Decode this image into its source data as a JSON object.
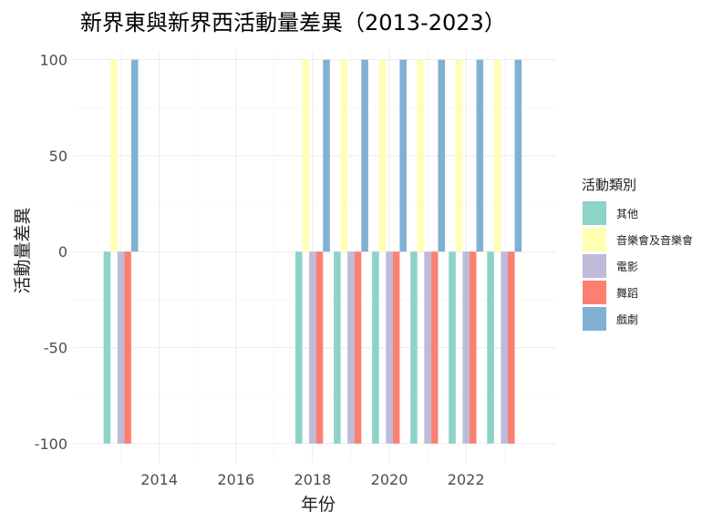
{
  "chart_data": {
    "type": "bar",
    "title": "新界東與新界西活動量差異（2013-2023）",
    "xlabel": "年份",
    "ylabel": "活動量差異",
    "x": [
      2013,
      2018,
      2019,
      2020,
      2021,
      2022,
      2023
    ],
    "xlim": [
      2011.75,
      2024.35
    ],
    "ylim": [
      -110,
      105
    ],
    "x_ticks": [
      2014,
      2016,
      2018,
      2020,
      2022
    ],
    "y_ticks": [
      100,
      50,
      0,
      -50,
      -100
    ],
    "grid": true,
    "legend": {
      "title": "活動類別",
      "position": "right"
    },
    "series": [
      {
        "name": "其他",
        "color": "#8DD3C7",
        "values": [
          -100,
          -100,
          -100,
          -100,
          -100,
          -100,
          -100
        ]
      },
      {
        "name": "音樂會及音樂會",
        "color": "#FFFFB3",
        "values": [
          100,
          100,
          100,
          100,
          100,
          100,
          100
        ]
      },
      {
        "name": "電影",
        "color": "#BEBADA",
        "values": [
          -100,
          -100,
          -100,
          -100,
          -100,
          -100,
          -100
        ]
      },
      {
        "name": "舞蹈",
        "color": "#FB8072",
        "values": [
          -100,
          -100,
          -100,
          -100,
          -100,
          -100,
          -100
        ]
      },
      {
        "name": "戲劇",
        "color": "#80B1D3",
        "values": [
          100,
          100,
          100,
          100,
          100,
          100,
          100
        ]
      }
    ]
  }
}
